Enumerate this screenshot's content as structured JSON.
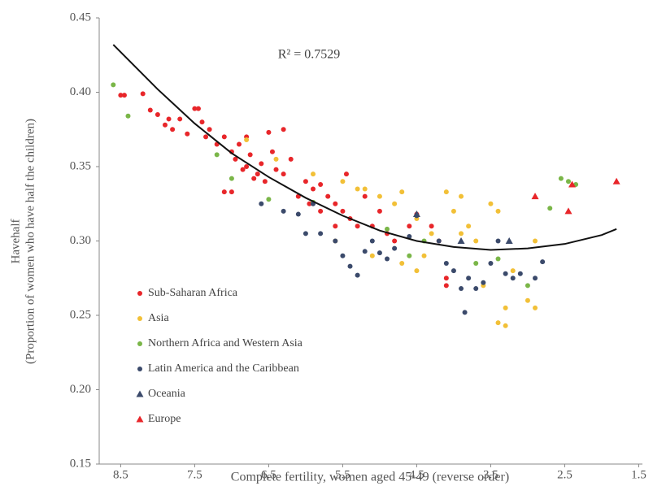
{
  "chart_data": {
    "type": "scatter",
    "x_label": "Complete fertility, women aged 45-49 (reverse order)",
    "y_label": [
      "Havehalf",
      "(Proportion of women who have half the children)"
    ],
    "annotation": "R² = 0.7529",
    "x_reversed": true,
    "xlim": [
      8.79,
      1.45
    ],
    "xticks": [
      8.5,
      7.5,
      6.5,
      5.5,
      4.5,
      3.5,
      2.5,
      1.5
    ],
    "ylim": [
      0.15,
      0.45
    ],
    "yticks": [
      0.15,
      {
        "value": 0.2,
        "label": "0.20"
      },
      0.25,
      {
        "value": 0.3,
        "label": "0.30"
      },
      0.35,
      {
        "value": 0.4,
        "label": "0.40"
      },
      0.45
    ],
    "legend": "lower left",
    "series": [
      {
        "name": "Sub-Saharan Africa",
        "color": "#e8262a",
        "marker": "circle",
        "x": [
          8.5,
          8.45,
          8.2,
          8.1,
          8.0,
          7.9,
          7.85,
          7.8,
          7.7,
          7.6,
          7.5,
          7.45,
          7.4,
          7.35,
          7.3,
          7.2,
          7.1,
          7.0,
          6.95,
          6.9,
          6.85,
          6.8,
          6.75,
          6.7,
          6.65,
          6.6,
          6.55,
          6.5,
          6.45,
          6.4,
          6.3,
          6.2,
          6.1,
          6.0,
          5.95,
          5.9,
          5.8,
          5.7,
          5.6,
          5.5,
          5.45,
          5.4,
          5.3,
          5.2,
          5.1,
          5.0,
          4.9,
          4.8,
          4.6,
          4.5,
          4.3,
          4.2,
          4.1,
          4.1,
          7.0,
          7.1,
          6.8,
          6.3,
          5.8,
          5.6
        ],
        "values": [
          0.398,
          0.398,
          0.399,
          0.388,
          0.385,
          0.378,
          0.382,
          0.375,
          0.382,
          0.372,
          0.389,
          0.389,
          0.38,
          0.37,
          0.375,
          0.365,
          0.37,
          0.36,
          0.355,
          0.365,
          0.348,
          0.35,
          0.358,
          0.342,
          0.345,
          0.352,
          0.34,
          0.373,
          0.36,
          0.348,
          0.345,
          0.355,
          0.33,
          0.34,
          0.325,
          0.335,
          0.338,
          0.33,
          0.325,
          0.32,
          0.345,
          0.315,
          0.31,
          0.33,
          0.31,
          0.32,
          0.305,
          0.3,
          0.31,
          0.318,
          0.31,
          0.3,
          0.275,
          0.27,
          0.333,
          0.333,
          0.37,
          0.375,
          0.32,
          0.31
        ]
      },
      {
        "name": "Asia",
        "color": "#f2c037",
        "marker": "circle",
        "x": [
          6.8,
          6.4,
          5.9,
          5.5,
          5.3,
          5.2,
          5.0,
          4.8,
          4.7,
          4.5,
          4.5,
          4.4,
          4.3,
          4.1,
          4.0,
          3.9,
          3.9,
          3.8,
          3.7,
          3.6,
          3.5,
          3.4,
          3.3,
          3.4,
          3.3,
          3.2,
          3.0,
          2.9,
          2.9,
          5.6,
          5.1,
          4.7
        ],
        "values": [
          0.368,
          0.355,
          0.345,
          0.34,
          0.335,
          0.335,
          0.33,
          0.325,
          0.333,
          0.315,
          0.28,
          0.29,
          0.305,
          0.333,
          0.32,
          0.33,
          0.305,
          0.31,
          0.3,
          0.27,
          0.325,
          0.32,
          0.255,
          0.245,
          0.243,
          0.28,
          0.26,
          0.3,
          0.255,
          0.3,
          0.29,
          0.285
        ]
      },
      {
        "name": "Northern Africa and Western Asia",
        "color": "#7ab648",
        "marker": "circle",
        "x": [
          8.6,
          8.4,
          7.2,
          7.0,
          6.5,
          5.9,
          4.9,
          4.6,
          4.4,
          3.7,
          3.4,
          3.0,
          2.7,
          2.55,
          2.45,
          2.35
        ],
        "values": [
          0.405,
          0.384,
          0.358,
          0.342,
          0.328,
          0.326,
          0.308,
          0.29,
          0.3,
          0.285,
          0.288,
          0.27,
          0.322,
          0.342,
          0.34,
          0.338
        ]
      },
      {
        "name": "Latin America and the Caribbean",
        "color": "#3b4a6b",
        "marker": "circle",
        "x": [
          6.6,
          6.1,
          6.0,
          5.8,
          5.6,
          5.5,
          5.4,
          5.3,
          5.2,
          5.1,
          5.0,
          4.9,
          4.8,
          4.6,
          4.5,
          4.2,
          4.1,
          4.0,
          3.9,
          3.85,
          3.8,
          3.7,
          3.6,
          3.5,
          3.4,
          3.3,
          3.2,
          3.1,
          2.9,
          2.8,
          6.3,
          5.9
        ],
        "values": [
          0.325,
          0.318,
          0.305,
          0.305,
          0.3,
          0.29,
          0.283,
          0.277,
          0.293,
          0.3,
          0.292,
          0.288,
          0.295,
          0.303,
          0.317,
          0.3,
          0.285,
          0.28,
          0.268,
          0.252,
          0.275,
          0.268,
          0.272,
          0.285,
          0.3,
          0.278,
          0.275,
          0.278,
          0.275,
          0.286,
          0.32,
          0.325
        ]
      },
      {
        "name": "Oceania",
        "color": "#3b4a6b",
        "marker": "triangle",
        "x": [
          4.5,
          3.9,
          3.25
        ],
        "values": [
          0.318,
          0.3,
          0.3
        ]
      },
      {
        "name": "Europe",
        "color": "#e8262a",
        "marker": "triangle",
        "x": [
          2.9,
          2.45,
          2.4,
          1.8
        ],
        "values": [
          0.33,
          0.32,
          0.338,
          0.34
        ]
      }
    ],
    "trendline": {
      "color": "#111111",
      "x": [
        8.6,
        8.0,
        7.5,
        7.0,
        6.5,
        6.0,
        5.5,
        5.0,
        4.5,
        4.0,
        3.5,
        3.0,
        2.5,
        2.0,
        1.8
      ],
      "values": [
        0.432,
        0.402,
        0.379,
        0.359,
        0.343,
        0.329,
        0.317,
        0.307,
        0.3,
        0.296,
        0.294,
        0.295,
        0.298,
        0.304,
        0.308
      ]
    }
  }
}
